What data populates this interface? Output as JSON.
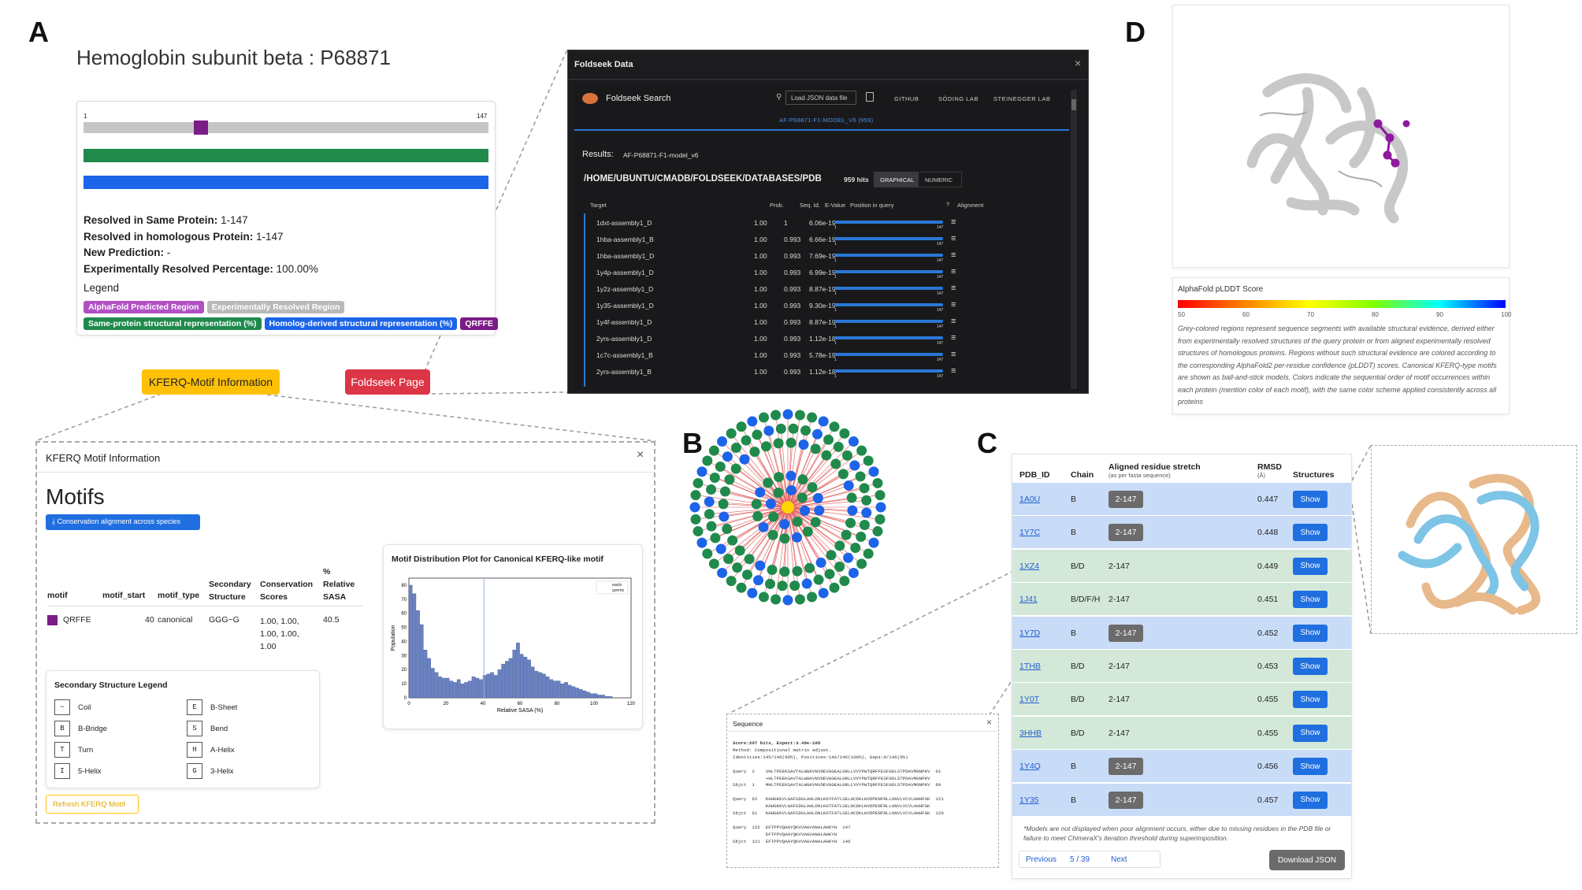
{
  "labels": {
    "A": "A",
    "B": "B",
    "C": "C",
    "D": "D"
  },
  "panelA": {
    "title": "Hemoglobin subunit beta : P68871",
    "track_start": "1",
    "track_end": "147",
    "stats": [
      {
        "k": "Resolved in Same Protein:",
        "v": " 1-147"
      },
      {
        "k": "Resolved in homologous Protein:",
        "v": " 1-147"
      },
      {
        "k": "New Prediction:",
        "v": " -"
      },
      {
        "k": "Experimentally Resolved Percentage:",
        "v": " 100.00%"
      }
    ],
    "legend_title": "Legend",
    "legend_badges_1": [
      {
        "text": "AlphaFold Predicted Region",
        "color": "#b14fc5"
      },
      {
        "text": "Experimentally Resolved Region",
        "color": "#b9b9b9"
      }
    ],
    "legend_badges_2": [
      {
        "text": "Same-protein structural representation (%)",
        "color": "#1f8a4c"
      },
      {
        "text": "Homolog-derived structural representation (%)",
        "color": "#1c64e8"
      },
      {
        "text": "QRFFE",
        "color": "#7b1c87"
      }
    ],
    "kferq_button": "KFERQ-Motif Information",
    "foldseek_button": "Foldseek Page"
  },
  "foldseek": {
    "window_title": "Foldseek Data",
    "app_name": "Foldseek Search",
    "load_json": "Load JSON data file",
    "nav": [
      "GITHUB",
      "SÖDING LAB",
      "STEINEGGER LAB"
    ],
    "model_tab": "AF-P68871-F1-MODEL_V6 (959)",
    "results_label": "Results:",
    "results_value": "AF-P68871-F1-model_v6",
    "db_path": "/HOME/UBUNTU/CMADB/FOLDSEEK/DATABASES/PDB",
    "hits": "959 hits",
    "view_graphical": "GRAPHICAL",
    "view_numeric": "NUMERIC",
    "columns": [
      "Target",
      "Prob.",
      "Seq. Id.",
      "E-Value",
      "Position in query",
      "Alignment"
    ],
    "rows": [
      {
        "t": "1dxt-assembly1_D",
        "p": "1.00",
        "s": "1",
        "e": "6.06e-19"
      },
      {
        "t": "1hba-assembly1_B",
        "p": "1.00",
        "s": "0.993",
        "e": "6.66e-19"
      },
      {
        "t": "1hba-assembly1_D",
        "p": "1.00",
        "s": "0.993",
        "e": "7.69e-19"
      },
      {
        "t": "1y4p-assembly1_D",
        "p": "1.00",
        "s": "0.993",
        "e": "6.99e-19"
      },
      {
        "t": "1y2z-assembly1_D",
        "p": "1.00",
        "s": "0.993",
        "e": "8.87e-19"
      },
      {
        "t": "1y35-assembly1_D",
        "p": "1.00",
        "s": "0.993",
        "e": "9.30e-19"
      },
      {
        "t": "1y4f-assembly1_D",
        "p": "1.00",
        "s": "0.993",
        "e": "8.87e-19"
      },
      {
        "t": "2yrs-assembly1_D",
        "p": "1.00",
        "s": "0.993",
        "e": "1.12e-18"
      },
      {
        "t": "1c7c-assembly1_B",
        "p": "1.00",
        "s": "0.993",
        "e": "5.78e-19"
      },
      {
        "t": "2yrs-assembly1_B",
        "p": "1.00",
        "s": "0.993",
        "e": "1.12e-18"
      }
    ],
    "pos_start": "1",
    "pos_end": "147"
  },
  "motif": {
    "header": "KFERQ Motif Information",
    "heading": "Motifs",
    "cons_button": "Conservation alignment across species",
    "columns": [
      "motif",
      "motif_start",
      "motif_type",
      "Secondary Structure",
      "Conservation Scores",
      "% Relative SASA"
    ],
    "row": {
      "motif": "QRFFE",
      "start": "40",
      "type": "canonical",
      "ss": "GGG~G",
      "cons": "1.00, 1.00, 1.00, 1.00, 1.00",
      "sasa": "40.5"
    },
    "ss_legend_title": "Secondary Structure Legend",
    "ss_legend": [
      {
        "code": "~",
        "name": "Coil"
      },
      {
        "code": "E",
        "name": "B-Sheet"
      },
      {
        "code": "B",
        "name": "B-Bridge"
      },
      {
        "code": "S",
        "name": "Bend"
      },
      {
        "code": "T",
        "name": "Turn"
      },
      {
        "code": "H",
        "name": "A-Helix"
      },
      {
        "code": "I",
        "name": "5-Helix"
      },
      {
        "code": "G",
        "name": "3-Helix"
      }
    ],
    "refresh_button": "Refresh KFERQ Motif",
    "plot_title": "Motif Distribution Plot for Canonical KFERQ-like motif"
  },
  "chart_data": {
    "type": "bar",
    "xlabel": "Relative SASA (%)",
    "ylabel": "Population",
    "xlim": [
      0,
      120
    ],
    "ylim": [
      0,
      85
    ],
    "xticks": [
      0,
      20,
      40,
      60,
      80,
      100,
      120
    ],
    "yticks": [
      0,
      10,
      20,
      30,
      40,
      50,
      60,
      70,
      80
    ],
    "legend": [
      "Motifs",
      "QRFFE"
    ],
    "marker_x": 40.5,
    "bin_width": 2,
    "bin_starts": [
      0,
      2,
      4,
      6,
      8,
      10,
      12,
      14,
      16,
      18,
      20,
      22,
      24,
      26,
      28,
      30,
      32,
      34,
      36,
      38,
      40,
      42,
      44,
      46,
      48,
      50,
      52,
      54,
      56,
      58,
      60,
      62,
      64,
      66,
      68,
      70,
      72,
      74,
      76,
      78,
      80,
      82,
      84,
      86,
      88,
      90,
      92,
      94,
      96,
      98,
      100,
      102,
      104,
      106,
      108
    ],
    "values": [
      80,
      74,
      62,
      52,
      34,
      28,
      21,
      18,
      15,
      14,
      14,
      12,
      11,
      13,
      10,
      11,
      12,
      15,
      14,
      13,
      16,
      17,
      18,
      16,
      20,
      24,
      26,
      28,
      34,
      39,
      31,
      29,
      27,
      22,
      19,
      18,
      17,
      15,
      13,
      12,
      12,
      10,
      11,
      9,
      8,
      7,
      6,
      5,
      4,
      3,
      3,
      2,
      2,
      1,
      1
    ]
  },
  "panelC": {
    "columns": [
      "PDB_ID",
      "Chain",
      "Aligned residue stretch",
      "(as per fasta sequence)",
      "RMSD",
      "(Å)",
      "Structures"
    ],
    "rows": [
      {
        "id": "1A0U",
        "chain": "B",
        "range": "2-147",
        "rmsd": "0.447",
        "btn": "Show",
        "boxed": true,
        "bg": "#c9dcf7"
      },
      {
        "id": "1Y7C",
        "chain": "B",
        "range": "2-147",
        "rmsd": "0.448",
        "btn": "Show",
        "boxed": true,
        "bg": "#c9dcf7"
      },
      {
        "id": "1XZ4",
        "chain": "B/D",
        "range": "2-147",
        "rmsd": "0.449",
        "btn": "Show",
        "boxed": false,
        "bg": "#d3e8d8"
      },
      {
        "id": "1J41",
        "chain": "B/D/F/H",
        "range": "2-147",
        "rmsd": "0.451",
        "btn": "Show",
        "boxed": false,
        "bg": "#d3e8d8"
      },
      {
        "id": "1Y7D",
        "chain": "B",
        "range": "2-147",
        "rmsd": "0.452",
        "btn": "Show",
        "boxed": true,
        "bg": "#c9dcf7"
      },
      {
        "id": "1THB",
        "chain": "B/D",
        "range": "2-147",
        "rmsd": "0.453",
        "btn": "Show",
        "boxed": false,
        "bg": "#d3e8d8"
      },
      {
        "id": "1Y0T",
        "chain": "B/D",
        "range": "2-147",
        "rmsd": "0.455",
        "btn": "Show",
        "boxed": false,
        "bg": "#d3e8d8"
      },
      {
        "id": "3HHB",
        "chain": "B/D",
        "range": "2-147",
        "rmsd": "0.455",
        "btn": "Show",
        "boxed": false,
        "bg": "#d3e8d8"
      },
      {
        "id": "1Y4Q",
        "chain": "B",
        "range": "2-147",
        "rmsd": "0.456",
        "btn": "Show",
        "boxed": true,
        "bg": "#c9dcf7"
      },
      {
        "id": "1Y35",
        "chain": "B",
        "range": "2-147",
        "rmsd": "0.457",
        "btn": "Show",
        "boxed": true,
        "bg": "#c9dcf7"
      }
    ],
    "footnote": "*Models are not displayed when poor alignment occurs, either due to missing residues in the PDB file or failure to meet ChimeraX's iteration threshold during superimposition.",
    "prev": "Previous",
    "page": "5 / 39",
    "next": "Next",
    "download": "Download JSON"
  },
  "sequence": {
    "title": "Sequence",
    "lines": [
      "Score:297 bits, Expect:3.49e-105",
      "Method: Compositional matrix adjust.",
      "Identities:145/146(99%), Positives:146/146(100%), Gaps:0/146(0%)",
      "",
      "Query  2    VHLTPEEKSAVTALWGKVNVDEVGGEALGRLLVVYPWTQRFFESFGDLSTPDAVMGNPKV  61",
      "            +HLTPEEKSAVTALWGKVNVDEVGGEALGRLLVVYPWTQRFFESFGDLSTPDAVMGNPKV",
      "Sbjct  1    MHLTPEEKSAVTALWGKVNVDEVGGEALGRLLVVYPWTQRFFESFGDLSTPDAVMGNPKV  60",
      "",
      "Query  62   KAHGKKVLGAFSDGLAHLDNLKGTFATLSELHCDKLHVDPENFRLLGNVLVCVLAHHFGK  121",
      "            KAHGKKVLGAFSDGLAHLDNLKGTFATLSELHCDKLHVDPENFRLLGNVLVCVLAHHFGK",
      "Sbjct  61   KAHGKKVLGAFSDGLAHLDNLKGTFATLSELHCDKLHVDPENFRLLGNVLVCVLAHHFGK  120",
      "",
      "Query  122  EFTPPVQAAYQKVVAGVANALAHKYH  147",
      "            EFTPPVQAAYQKVVAGVANALAHKYH",
      "Sbjct  121  EFTPPVQAAYQKVVAGVANALAHKYH  146"
    ]
  },
  "plddt": {
    "title": "AlphaFold pLDDT Score",
    "ticks": [
      "50",
      "60",
      "70",
      "80",
      "90",
      "100"
    ],
    "description": "Grey-colored regions represent sequence segments with available structural evidence, derived either from experimentally resolved structures of the query protein or from aligned experimentally resolved structures of homologous proteins. Regions without such structural evidence are colored according to the corresponding AlphaFold2 per-residue confidence (pLDDT) scores. Canonical KFERQ-type motifs are shown as ball-and-stick models. Colors indicate the sequential order of motif occurrences within each protein (mention color of each motif), with the same color scheme applied consistently across all proteins"
  },
  "colors": {
    "green": "#1f8a4c",
    "blue": "#1c64e8",
    "purple": "#7b1c87",
    "orange": "#ffc107",
    "red": "#dc3545"
  }
}
